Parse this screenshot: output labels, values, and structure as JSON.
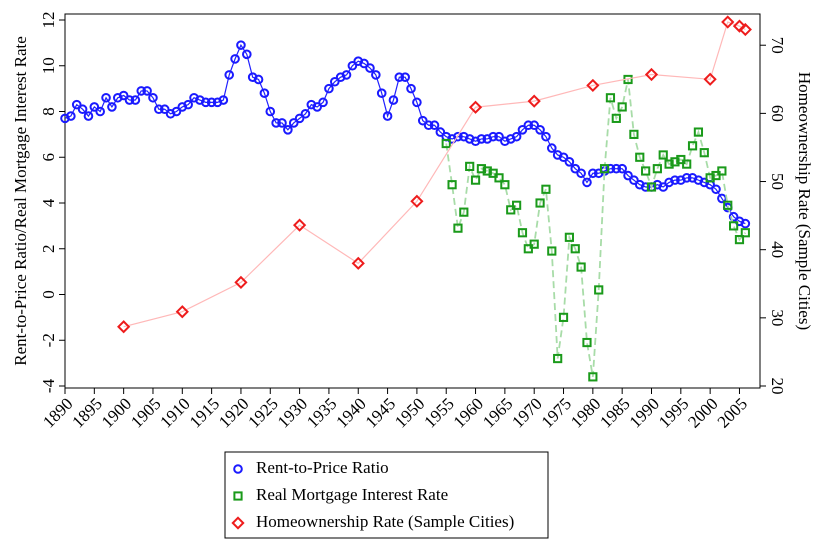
{
  "chart_data": {
    "type": "line",
    "ylabel": "Rent-to-Price Ratio/Real Mortgage Interest Rate",
    "y2label": "Homeownership Rate (Sample Cities)",
    "xlim": [
      1890,
      2008.5
    ],
    "xticks": [
      1890,
      1895,
      1900,
      1905,
      1910,
      1915,
      1920,
      1925,
      1930,
      1935,
      1940,
      1945,
      1950,
      1955,
      1960,
      1965,
      1970,
      1975,
      1980,
      1985,
      1990,
      1995,
      2000,
      2005
    ],
    "ylim": [
      -4,
      12
    ],
    "yticks": [
      -4,
      -2,
      0,
      2,
      4,
      6,
      8,
      10,
      12
    ],
    "y2lim": [
      20,
      73.7
    ],
    "y2ticks": [
      20,
      30,
      40,
      50,
      60,
      70
    ],
    "series": [
      {
        "name": "Rent-to-Price Ratio",
        "color": "#1a1aff",
        "line_color": "#2020ff",
        "marker": "circle",
        "line_style": "solid",
        "x": [
          1890,
          1891,
          1892,
          1893,
          1894,
          1895,
          1896,
          1897,
          1898,
          1899,
          1900,
          1901,
          1902,
          1903,
          1904,
          1905,
          1906,
          1907,
          1908,
          1909,
          1910,
          1911,
          1912,
          1913,
          1914,
          1915,
          1916,
          1917,
          1918,
          1919,
          1920,
          1921,
          1922,
          1923,
          1924,
          1925,
          1926,
          1927,
          1928,
          1929,
          1930,
          1931,
          1932,
          1933,
          1934,
          1935,
          1936,
          1937,
          1938,
          1939,
          1940,
          1941,
          1942,
          1943,
          1944,
          1945,
          1946,
          1947,
          1948,
          1949,
          1950,
          1951,
          1952,
          1953,
          1954,
          1955,
          1956,
          1957,
          1958,
          1959,
          1960,
          1961,
          1962,
          1963,
          1964,
          1965,
          1966,
          1967,
          1968,
          1969,
          1970,
          1971,
          1972,
          1973,
          1974,
          1975,
          1976,
          1977,
          1978,
          1979,
          1980,
          1981,
          1982,
          1983,
          1984,
          1985,
          1986,
          1987,
          1988,
          1989,
          1990,
          1991,
          1992,
          1993,
          1994,
          1995,
          1996,
          1997,
          1998,
          1999,
          2000,
          2001,
          2002,
          2003,
          2004,
          2005,
          2006
        ],
        "values": [
          7.7,
          7.8,
          8.3,
          8.1,
          7.8,
          8.2,
          8.0,
          8.6,
          8.2,
          8.6,
          8.7,
          8.5,
          8.5,
          8.9,
          8.9,
          8.6,
          8.1,
          8.1,
          7.9,
          8.0,
          8.2,
          8.3,
          8.6,
          8.5,
          8.4,
          8.4,
          8.4,
          8.5,
          9.6,
          10.3,
          10.9,
          10.5,
          9.5,
          9.4,
          8.8,
          8.0,
          7.5,
          7.5,
          7.2,
          7.5,
          7.7,
          7.9,
          8.3,
          8.2,
          8.4,
          9.0,
          9.3,
          9.5,
          9.6,
          10.0,
          10.2,
          10.1,
          9.9,
          9.6,
          8.8,
          7.8,
          8.5,
          9.5,
          9.5,
          9.0,
          8.4,
          7.6,
          7.4,
          7.4,
          7.1,
          6.9,
          6.8,
          6.9,
          6.9,
          6.8,
          6.7,
          6.8,
          6.8,
          6.9,
          6.9,
          6.7,
          6.8,
          6.9,
          7.2,
          7.4,
          7.4,
          7.2,
          6.9,
          6.4,
          6.1,
          6.0,
          5.8,
          5.5,
          5.3,
          4.9,
          5.3,
          5.3,
          5.4,
          5.5,
          5.5,
          5.5,
          5.2,
          5.0,
          4.8,
          4.7,
          4.7,
          4.8,
          4.7,
          4.9,
          5.0,
          5.0,
          5.1,
          5.1,
          5.0,
          4.9,
          4.8,
          4.6,
          4.2,
          3.8,
          3.4,
          3.2,
          3.1
        ]
      },
      {
        "name": "Real Mortgage Interest Rate",
        "color": "#1a9a1a",
        "line_color": "#a8dca8",
        "marker": "square",
        "line_style": "dashed",
        "x": [
          1955,
          1956,
          1957,
          1958,
          1959,
          1960,
          1961,
          1962,
          1963,
          1964,
          1965,
          1966,
          1967,
          1968,
          1969,
          1970,
          1971,
          1972,
          1973,
          1974,
          1975,
          1976,
          1977,
          1978,
          1979,
          1980,
          1981,
          1982,
          1983,
          1984,
          1985,
          1986,
          1987,
          1988,
          1989,
          1990,
          1991,
          1992,
          1993,
          1994,
          1995,
          1996,
          1997,
          1998,
          1999,
          2000,
          2001,
          2002,
          2003,
          2004,
          2005,
          2006
        ],
        "values": [
          6.6,
          4.8,
          2.9,
          3.6,
          5.6,
          5.0,
          5.5,
          5.4,
          5.3,
          5.1,
          4.8,
          3.7,
          3.9,
          2.7,
          2.0,
          2.2,
          4.0,
          4.6,
          1.9,
          -2.8,
          -1.0,
          2.5,
          2.0,
          1.2,
          -2.1,
          -3.6,
          0.2,
          5.5,
          8.6,
          7.7,
          8.2,
          9.4,
          7.0,
          6.0,
          5.4,
          4.7,
          5.5,
          6.1,
          5.7,
          5.8,
          5.9,
          5.7,
          6.5,
          7.1,
          6.2,
          5.1,
          5.2,
          5.4,
          3.9,
          3.0,
          2.4,
          2.7
        ]
      },
      {
        "name": "Homeownership Rate (Sample Cities)",
        "color": "#ee1c1c",
        "line_color": "#ffb8b8",
        "marker": "diamond",
        "line_style": "solid",
        "axis": "y2",
        "x": [
          1900,
          1910,
          1920,
          1930,
          1940,
          1950,
          1960,
          1970,
          1980,
          1990,
          2000,
          2003,
          2005,
          2006
        ],
        "values": [
          28.7,
          30.9,
          35.2,
          43.6,
          38.0,
          47.1,
          60.9,
          61.8,
          64.1,
          65.7,
          65.0,
          73.4,
          72.8,
          72.3
        ]
      }
    ]
  }
}
